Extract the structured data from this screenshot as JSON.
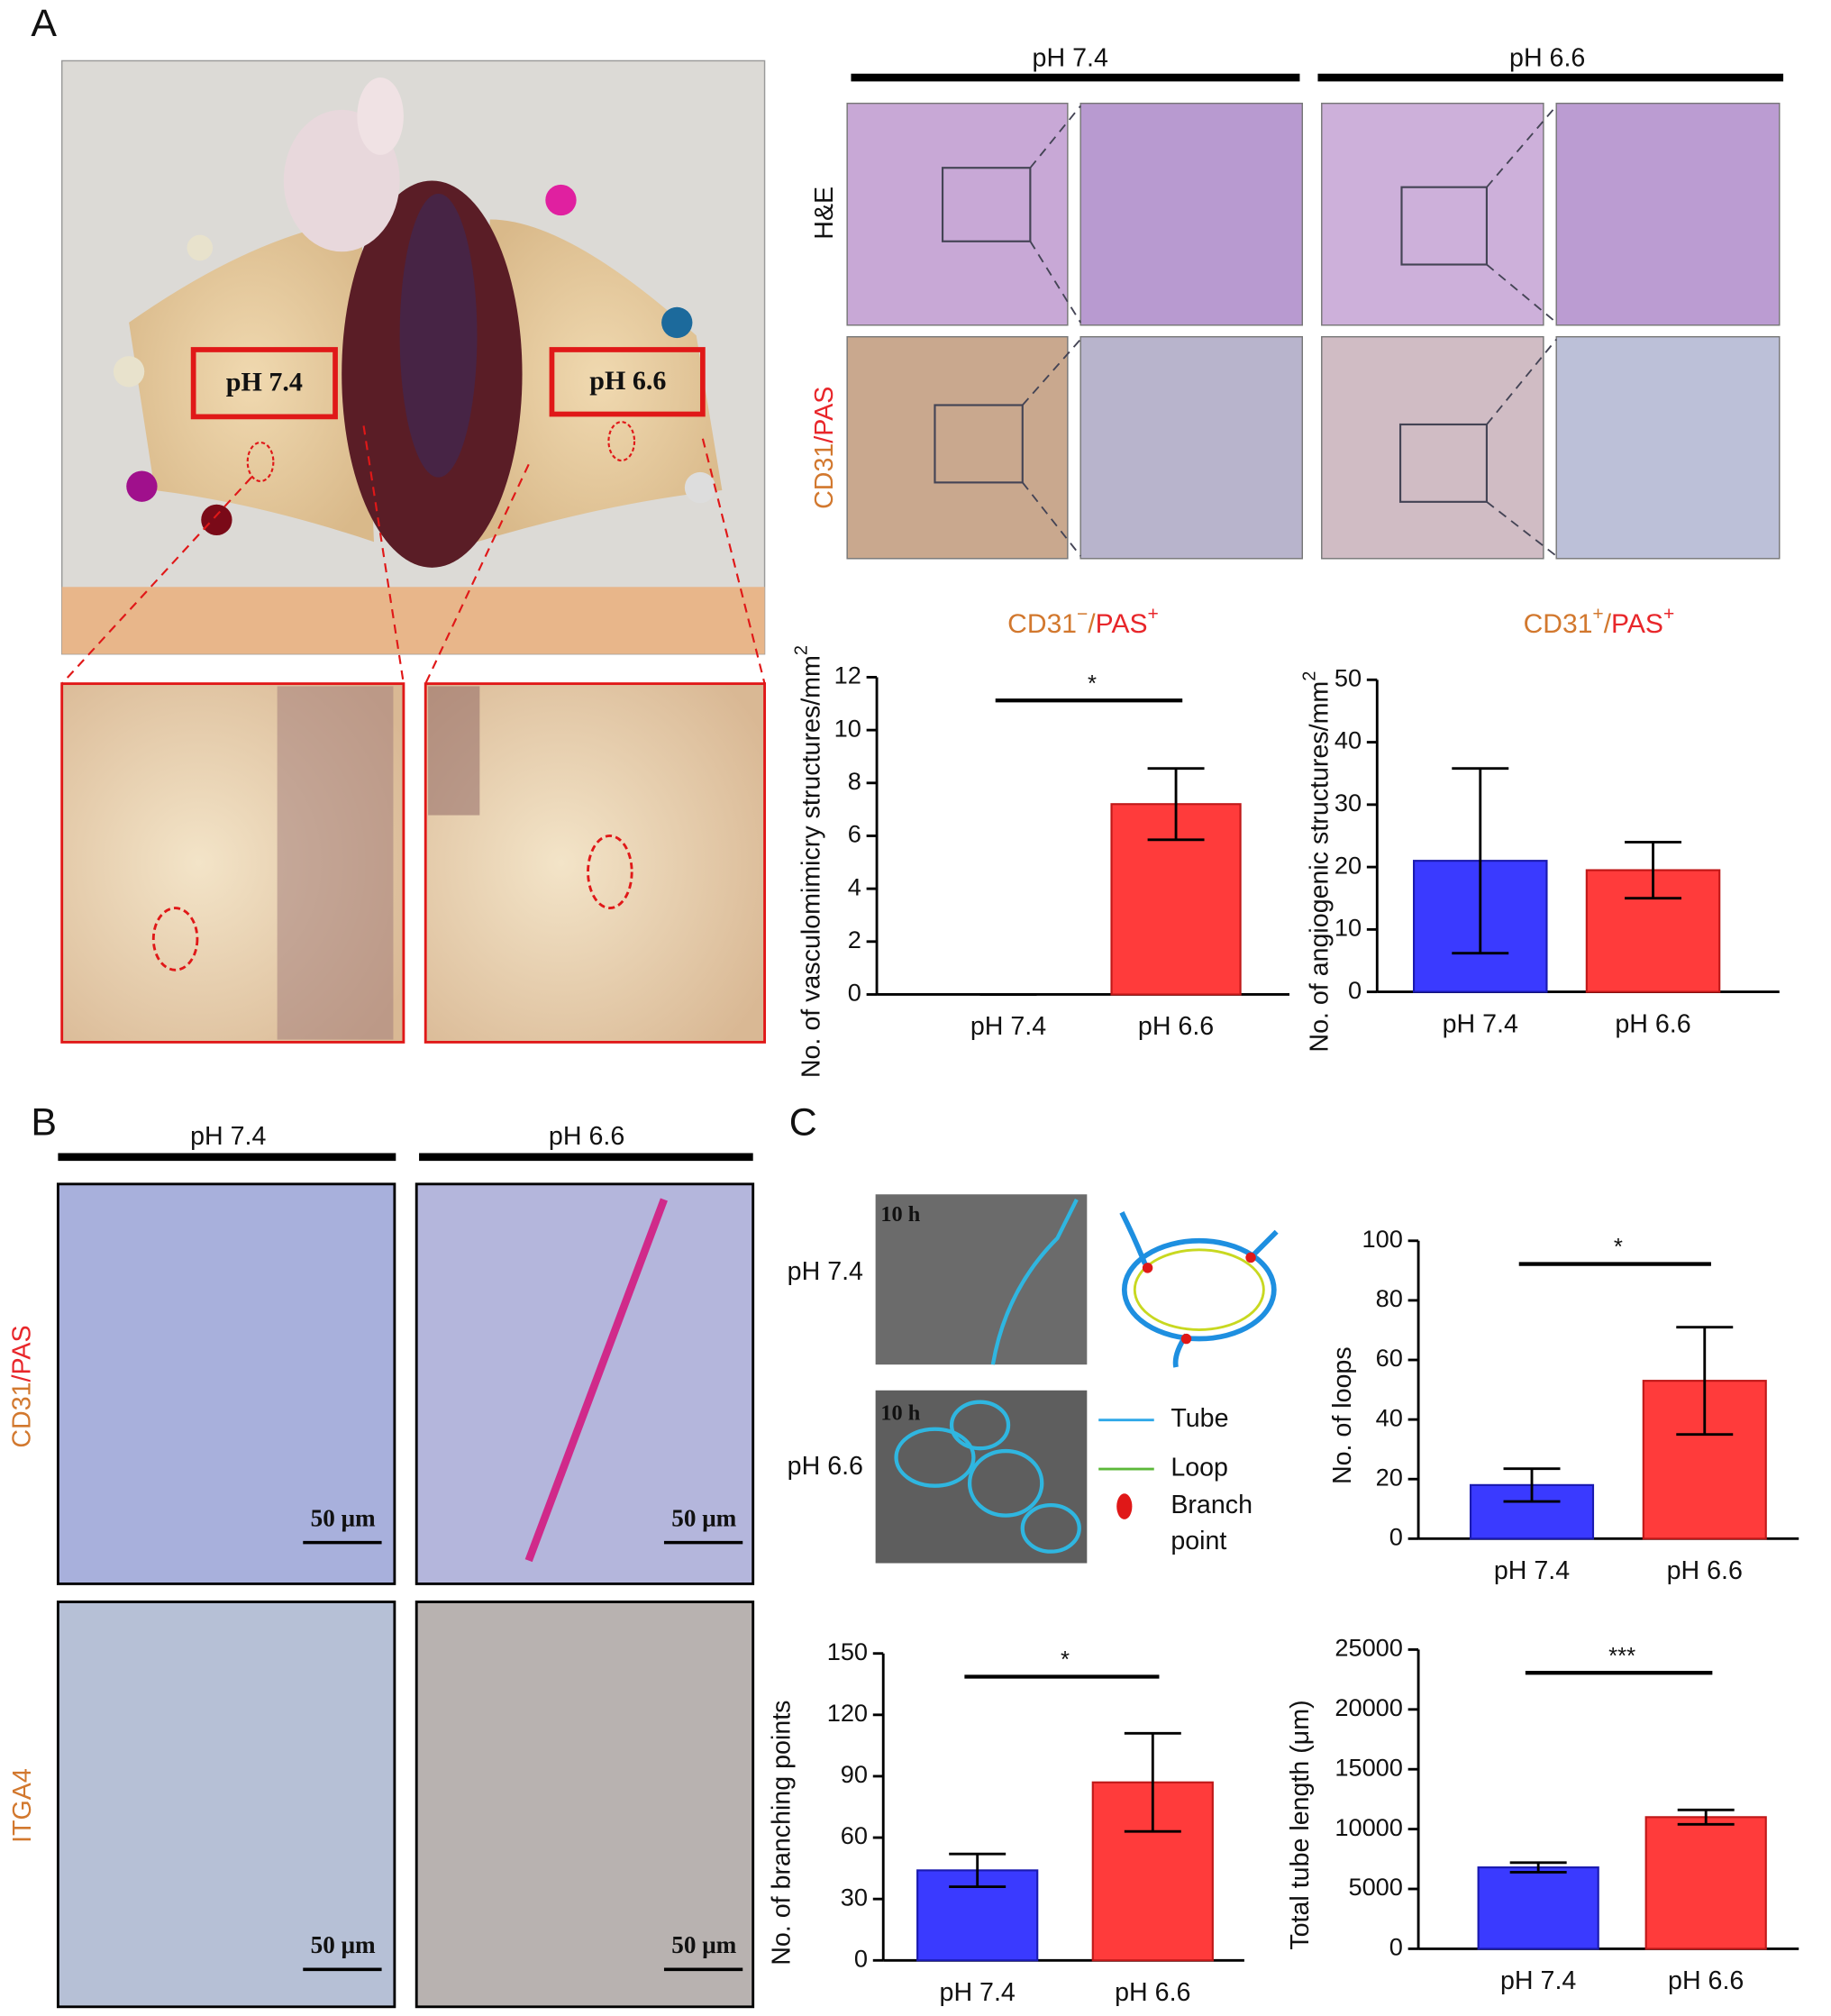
{
  "panel_labels": [
    "A",
    "B",
    "C"
  ],
  "panel_a": {
    "photo_labels": [
      "pH 7.4",
      "pH 6.6"
    ],
    "histology_headers": [
      "pH 7.4",
      "pH 6.6"
    ],
    "row_labels": [
      [
        {
          "text": "H&E",
          "color": "#111111"
        }
      ],
      [
        {
          "text": "CD31",
          "color": "#d2782e"
        },
        {
          "text": "/PAS",
          "color": "#e8262a"
        }
      ]
    ]
  },
  "panel_b": {
    "headers": [
      "pH 7.4",
      "pH 6.6"
    ],
    "row_labels": [
      [
        {
          "text": "CD31",
          "color": "#d2782e"
        },
        {
          "text": "/PAS",
          "color": "#e8262a"
        }
      ],
      [
        {
          "text": "ITGA4",
          "color": "#d2782e"
        }
      ]
    ],
    "scale_labels": [
      "50 μm",
      "50 μm",
      "50 μm",
      "50 μm"
    ]
  },
  "panel_c": {
    "row_labels": [
      "pH 7.4",
      "pH 6.6"
    ],
    "time_labels": [
      "10 h",
      "10 h"
    ],
    "legend": {
      "tube": "Tube",
      "loop": "Loop",
      "branch": [
        "Branch",
        "point"
      ]
    }
  },
  "chart_data": [
    {
      "type": "bar",
      "title": [
        {
          "text": "CD31",
          "color": "#d2782e"
        },
        {
          "text": "−",
          "color": "#d2782e",
          "sup": true
        },
        {
          "text": "/",
          "color": "#d2782e"
        },
        {
          "text": "PAS",
          "color": "#e8262a"
        },
        {
          "text": "+",
          "color": "#e8262a",
          "sup": true
        }
      ],
      "y_label": [
        {
          "text": "No. of vasculomimicry structures/mm",
          "color": "#111111"
        },
        {
          "text": "2",
          "color": "#111111",
          "sup": true
        }
      ],
      "categories": [
        "pH 7.4",
        "pH 6.6"
      ],
      "values": [
        0,
        7.2
      ],
      "errors": [
        0,
        1.35
      ],
      "colors": [
        "#3a3aff",
        "#ff3b3b"
      ],
      "significance": "*",
      "ylim": [
        0,
        12
      ],
      "yticks": [
        0,
        2,
        4,
        6,
        8,
        10,
        12
      ]
    },
    {
      "type": "bar",
      "title": [
        {
          "text": "CD31",
          "color": "#d2782e"
        },
        {
          "text": "+",
          "color": "#d2782e",
          "sup": true
        },
        {
          "text": "/",
          "color": "#d2782e"
        },
        {
          "text": "PAS",
          "color": "#e8262a"
        },
        {
          "text": "+",
          "color": "#e8262a",
          "sup": true
        }
      ],
      "y_label": [
        {
          "text": "No. of angiogenic structures/mm",
          "color": "#111111"
        },
        {
          "text": "2",
          "color": "#111111",
          "sup": true
        }
      ],
      "categories": [
        "pH 7.4",
        "pH 6.6"
      ],
      "values": [
        21,
        19.5
      ],
      "errors": [
        14.8,
        4.5
      ],
      "colors": [
        "#3a3aff",
        "#ff3b3b"
      ],
      "ylim": [
        0,
        50
      ],
      "yticks": [
        0,
        10,
        20,
        30,
        40,
        50
      ]
    },
    {
      "type": "bar",
      "y_label": [
        {
          "text": "No. of loops",
          "color": "#111111"
        }
      ],
      "categories": [
        "pH 7.4",
        "pH 6.6"
      ],
      "values": [
        18,
        53
      ],
      "errors": [
        5.5,
        18
      ],
      "colors": [
        "#3a3aff",
        "#ff3b3b"
      ],
      "significance": "*",
      "ylim": [
        0,
        100
      ],
      "yticks": [
        0,
        20,
        40,
        60,
        80,
        100
      ]
    },
    {
      "type": "bar",
      "y_label": [
        {
          "text": "No. of branching points",
          "color": "#111111"
        }
      ],
      "categories": [
        "pH 7.4",
        "pH 6.6"
      ],
      "values": [
        44,
        87
      ],
      "errors": [
        8,
        24
      ],
      "colors": [
        "#3a3aff",
        "#ff3b3b"
      ],
      "significance": "*",
      "ylim": [
        0,
        150
      ],
      "yticks": [
        0,
        30,
        60,
        90,
        120,
        150
      ]
    },
    {
      "type": "bar",
      "y_label": [
        {
          "text": "Total tube length (μm)",
          "color": "#111111"
        }
      ],
      "categories": [
        "pH 7.4",
        "pH 6.6"
      ],
      "values": [
        6800,
        11000
      ],
      "errors": [
        400,
        600
      ],
      "colors": [
        "#3a3aff",
        "#ff3b3b"
      ],
      "significance": "***",
      "ylim": [
        0,
        25000
      ],
      "yticks": [
        0,
        5000,
        10000,
        15000,
        20000,
        25000
      ]
    }
  ]
}
